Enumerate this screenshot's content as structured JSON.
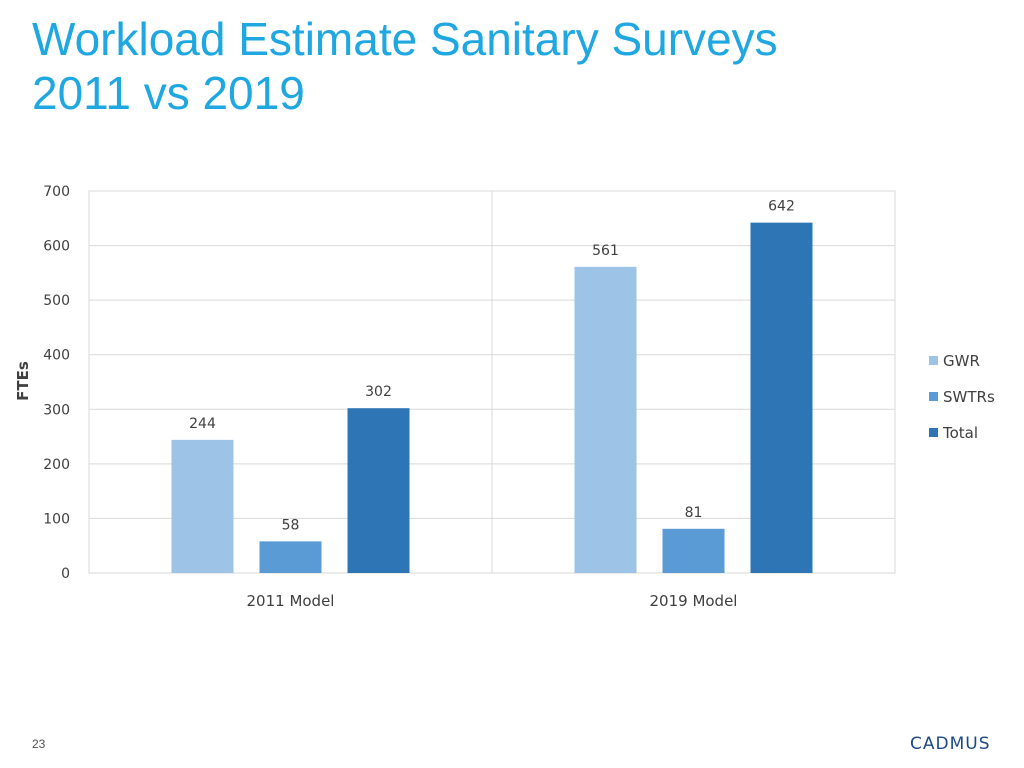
{
  "slide": {
    "title_line1": "Workload Estimate Sanitary Surveys",
    "title_line2": "2011 vs 2019",
    "page_number": "23",
    "brand": "CADMUS"
  },
  "colors": {
    "title": "#1ea7e1",
    "grid": "#d9d9d9",
    "axis_text": "#404040",
    "brand": "#1b4a8a"
  },
  "chart_data": {
    "type": "bar",
    "title": "",
    "xlabel": "",
    "ylabel": "FTEs",
    "categories": [
      "2011 Model",
      "2019 Model"
    ],
    "series": [
      {
        "name": "GWR",
        "color": "#9dc3e6",
        "values": [
          244,
          561
        ],
        "labels": [
          "244",
          "561"
        ]
      },
      {
        "name": "SWTRs",
        "color": "#5b9bd5",
        "values": [
          58,
          81
        ],
        "labels": [
          "58",
          "81"
        ]
      },
      {
        "name": "Total",
        "color": "#2e75b6",
        "values": [
          302,
          642
        ],
        "labels": [
          "302",
          "642"
        ]
      }
    ],
    "ylim": [
      0,
      700
    ],
    "yticks": [
      0,
      100,
      200,
      300,
      400,
      500,
      600,
      700
    ],
    "ytick_labels": [
      "0",
      "100",
      "200",
      "300",
      "400",
      "500",
      "600",
      "700"
    ],
    "grid": true,
    "legend": "right"
  }
}
